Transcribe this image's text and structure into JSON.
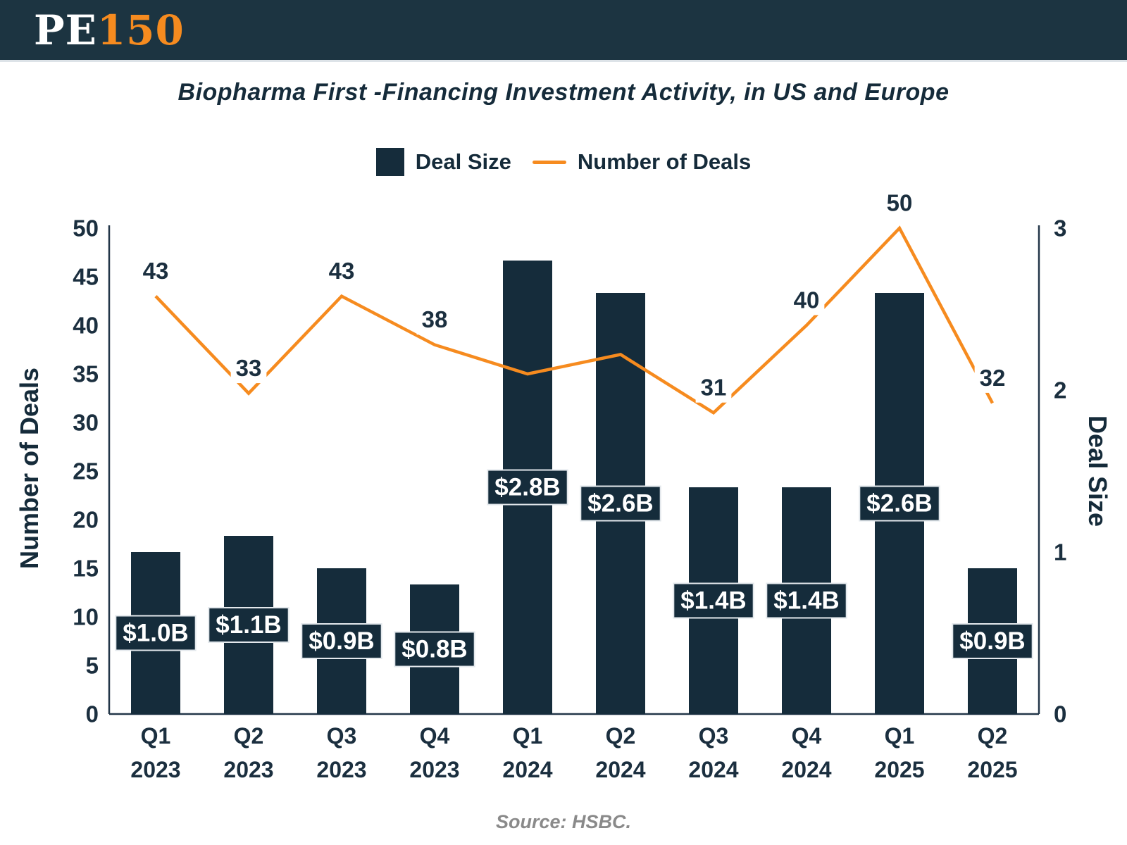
{
  "header": {
    "logo_pe": "PE",
    "logo_150": "150"
  },
  "title": "Biopharma First -Financing Investment Activity, in US and Europe",
  "legend": {
    "bar_label": "Deal Size",
    "line_label": "Number of Deals"
  },
  "axes": {
    "left_title": "Number of Deals",
    "right_title": "Deal Size",
    "left_ticks": [
      0,
      5,
      10,
      15,
      20,
      25,
      30,
      35,
      40,
      45,
      50
    ],
    "right_ticks": [
      0,
      1,
      2,
      3
    ]
  },
  "source": "Source: HSBC.",
  "colors": {
    "banner": "#1C3441",
    "bar": "#152C3B",
    "line": "#F68B1F",
    "text_dark": "#1B2F3F",
    "bar_label_text": "#ffffff",
    "box_border": "#e3e8ec",
    "source_gray": "#8a8a8a"
  },
  "chart_data": {
    "type": "combo_bar_line",
    "title": "Biopharma First -Financing Investment Activity, in US and Europe",
    "categories": [
      [
        "Q1",
        "2023"
      ],
      [
        "Q2",
        "2023"
      ],
      [
        "Q3",
        "2023"
      ],
      [
        "Q4",
        "2023"
      ],
      [
        "Q1",
        "2024"
      ],
      [
        "Q2",
        "2024"
      ],
      [
        "Q3",
        "2024"
      ],
      [
        "Q4",
        "2024"
      ],
      [
        "Q1",
        "2025"
      ],
      [
        "Q2",
        "2025"
      ]
    ],
    "series": [
      {
        "name": "Deal Size",
        "type": "bar",
        "axis": "right",
        "unit": "$B",
        "values": [
          1.0,
          1.1,
          0.9,
          0.8,
          2.8,
          2.6,
          1.4,
          1.4,
          2.6,
          0.9
        ],
        "labels": [
          "$1.0B",
          "$1.1B",
          "$0.9B",
          "$0.8B",
          "$2.8B",
          "$2.6B",
          "$1.4B",
          "$1.4B",
          "$2.6B",
          "$0.9B"
        ]
      },
      {
        "name": "Number of Deals",
        "type": "line",
        "axis": "left",
        "values": [
          43,
          33,
          43,
          38,
          35,
          37,
          31,
          40,
          50,
          32
        ],
        "labels": [
          "43",
          "33",
          "43",
          "38",
          "",
          "",
          "31",
          "40",
          "50",
          "32"
        ]
      }
    ],
    "left_axis": {
      "label": "Number of Deals",
      "min": 0,
      "max": 50,
      "step": 5
    },
    "right_axis": {
      "label": "Deal Size",
      "min": 0,
      "max": 3,
      "step": 1
    },
    "grid": false,
    "legend_position": "top"
  }
}
